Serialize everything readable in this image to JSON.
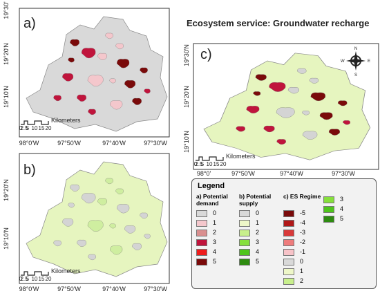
{
  "title": "Ecosystem service: Groundwater recharge",
  "panels": [
    {
      "label": "a)",
      "y_labels": [
        "19°30'",
        "19°20'N",
        "19°10'N"
      ],
      "x_labels": [
        "98°0'W",
        "97°50'W",
        "97°40'W",
        "97°30'W"
      ]
    },
    {
      "label": "b)",
      "y_labels": [
        "19°20'N",
        "19°10'N"
      ],
      "x_labels": [
        "98°0'W",
        "97°50'W",
        "97°40'W",
        "97°30'W"
      ]
    },
    {
      "label": "c)",
      "y_labels": [
        "19°30'N",
        "19°20'N",
        "19°10'N"
      ],
      "x_labels": [
        "98°0'",
        "97°50'W",
        "97°40'W",
        "97°30'W"
      ]
    }
  ],
  "scale_bar": {
    "ticks": [
      "0",
      "2.5",
      "5",
      "10",
      "15",
      "20"
    ],
    "unit": "Kilometers"
  },
  "compass": {
    "n": "N",
    "e": "E",
    "s": "S",
    "w": "W"
  },
  "legend": {
    "title": "Legend",
    "groups": [
      {
        "title": "a) Potential demand",
        "items": [
          {
            "label": "0",
            "color": "#d9d9d9"
          },
          {
            "label": "1",
            "color": "#f4c7cc"
          },
          {
            "label": "2",
            "color": "#d98f8f"
          },
          {
            "label": "3",
            "color": "#c0143c"
          },
          {
            "label": "4",
            "color": "#ee1c1c"
          },
          {
            "label": "5",
            "color": "#7a0a0a"
          }
        ]
      },
      {
        "title": "b) Potential supply",
        "items": [
          {
            "label": "0",
            "color": "#d9d9d9"
          },
          {
            "label": "1",
            "color": "#eef7c8"
          },
          {
            "label": "2",
            "color": "#c8ef8c"
          },
          {
            "label": "3",
            "color": "#86e03c"
          },
          {
            "label": "4",
            "color": "#4fc51c"
          },
          {
            "label": "5",
            "color": "#2e8b10"
          }
        ]
      },
      {
        "title": "c) ES Regime",
        "items": [
          {
            "label": "-5",
            "color": "#7a0a0a"
          },
          {
            "label": "-4",
            "color": "#b01818"
          },
          {
            "label": "-3",
            "color": "#d83a3a"
          },
          {
            "label": "-2",
            "color": "#ee7c7c"
          },
          {
            "label": "-1",
            "color": "#f7c3c8"
          },
          {
            "label": "0",
            "color": "#d9d9d9"
          },
          {
            "label": "1",
            "color": "#eef7c8"
          },
          {
            "label": "2",
            "color": "#c8ef8c"
          },
          {
            "label": "3",
            "color": "#86e03c"
          },
          {
            "label": "4",
            "color": "#4fc51c"
          },
          {
            "label": "5",
            "color": "#2e8b10"
          }
        ]
      }
    ]
  }
}
